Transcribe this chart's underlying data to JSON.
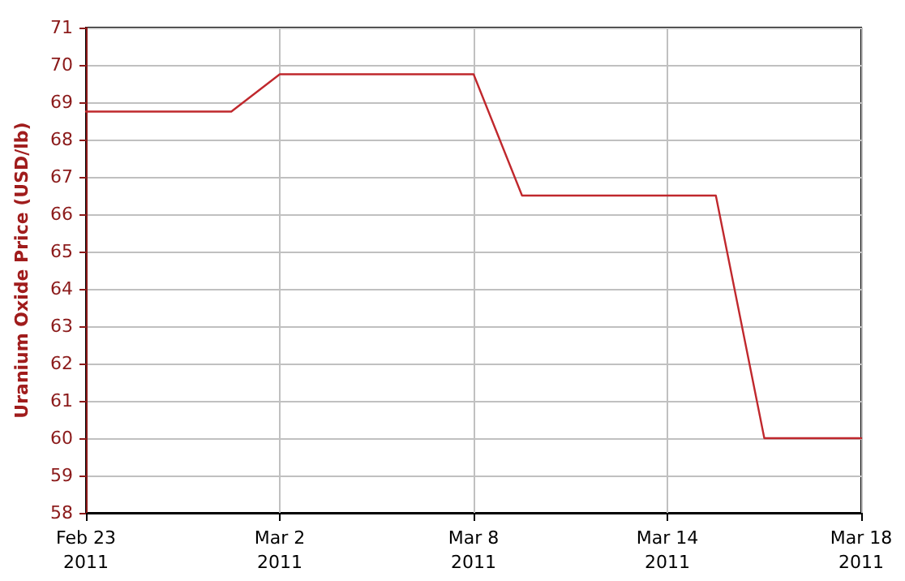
{
  "chart_data": {
    "type": "line",
    "ylabel": "Uranium Oxide Price (USD/lb)",
    "categories": [
      "Feb 23\n2011",
      null,
      null,
      null,
      "Mar 2\n2011",
      null,
      null,
      null,
      "Mar 8\n2011",
      null,
      null,
      null,
      "Mar 14\n2011",
      null,
      null,
      null,
      "Mar 18\n2011"
    ],
    "series": [
      {
        "color": "#c0282d",
        "values": [
          68.75,
          68.75,
          68.75,
          68.75,
          69.75,
          69.75,
          69.75,
          69.75,
          69.75,
          66.5,
          66.5,
          66.5,
          66.5,
          66.5,
          60,
          60,
          60
        ]
      }
    ],
    "ylim": [
      58,
      71
    ],
    "yticks": [
      58,
      59,
      60,
      61,
      62,
      63,
      64,
      65,
      66,
      67,
      68,
      69,
      70,
      71
    ],
    "grid": true,
    "marker": "none",
    "line_style": "solid"
  }
}
